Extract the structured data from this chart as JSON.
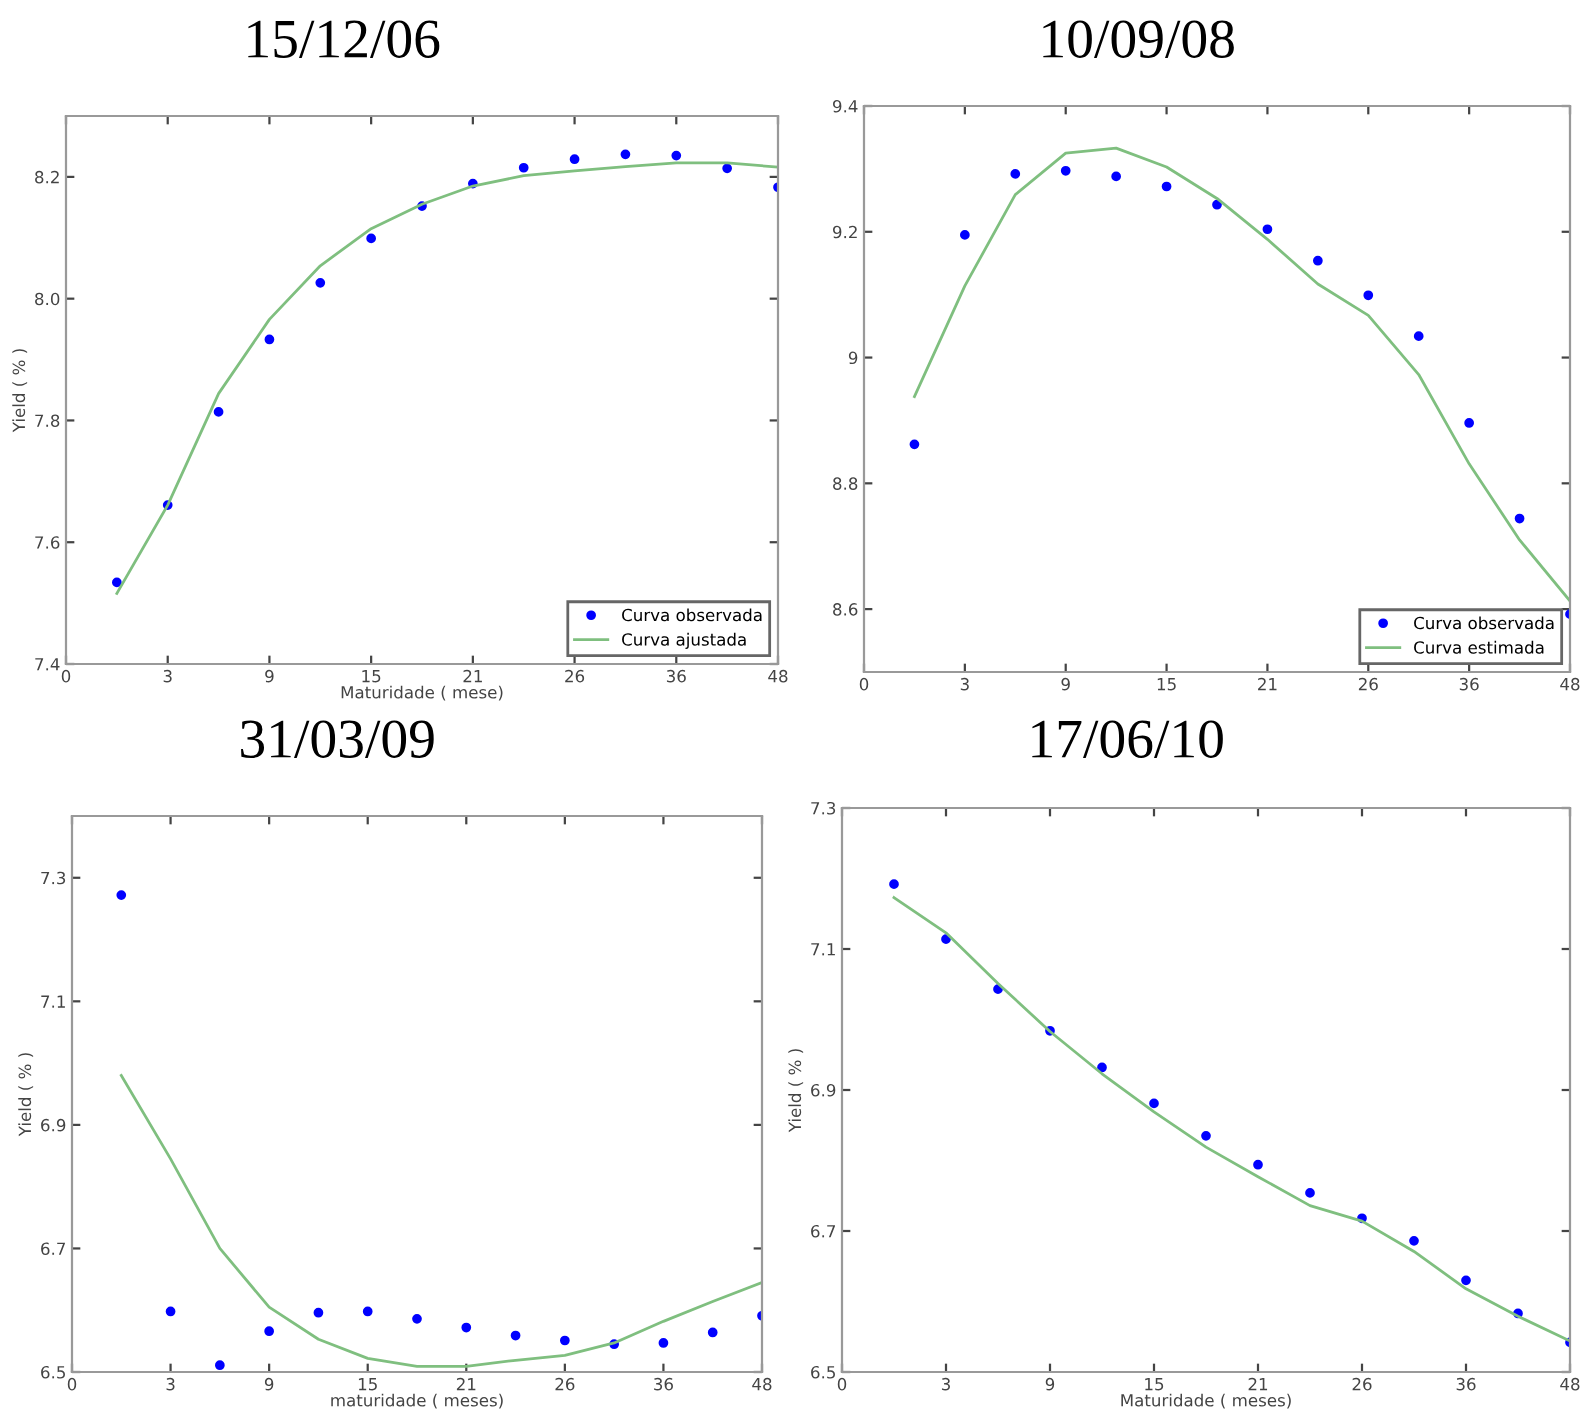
{
  "chart_data": [
    {
      "type": "line",
      "title": "15/12/06",
      "xlabel": "Maturidade ( mese)",
      "ylabel": "Yield ( % )",
      "categories": [
        "0",
        null,
        "3",
        null,
        "9",
        null,
        "15",
        null,
        "21",
        null,
        "26",
        null,
        "36",
        null,
        "48"
      ],
      "ylim": [
        7.4,
        8.3
      ],
      "yticks": [
        {
          "value": 7.4,
          "label": "7.4"
        },
        {
          "value": 7.6,
          "label": "7.6"
        },
        {
          "value": 7.8,
          "label": "7.8"
        },
        {
          "value": 8.0,
          "label": "8.0"
        },
        {
          "value": 8.2,
          "label": "8.2"
        }
      ],
      "legend": "bottom right",
      "grid": false,
      "series": [
        {
          "name": "Curva observada",
          "type": "scatter",
          "marker": "circle",
          "color": "#0000ff",
          "values": [
            null,
            7.534,
            7.661,
            7.814,
            7.933,
            8.026,
            8.099,
            8.152,
            8.189,
            8.215,
            8.229,
            8.237,
            8.235,
            8.214,
            8.183
          ]
        },
        {
          "name": "Curva ajustada",
          "line_style": "solid",
          "color": "#7fbf7f",
          "values": [
            null,
            7.516,
            7.661,
            7.844,
            7.966,
            8.054,
            8.115,
            8.155,
            8.185,
            8.202,
            8.21,
            8.217,
            8.223,
            8.223,
            8.216
          ]
        }
      ]
    },
    {
      "type": "line",
      "title": "10/09/08",
      "categories": [
        "0",
        null,
        "3",
        null,
        "9",
        null,
        "15",
        null,
        "21",
        null,
        "26",
        null,
        "36",
        null,
        "48"
      ],
      "ylim": [
        8.5,
        9.4
      ],
      "yticks": [
        {
          "value": 8.6,
          "label": "8.6"
        },
        {
          "value": 8.8,
          "label": "8.8"
        },
        {
          "value": 9.0,
          "label": "9"
        },
        {
          "value": 9.2,
          "label": "9.2"
        },
        {
          "value": 9.4,
          "label": "9.4"
        }
      ],
      "legend": "bottom right",
      "grid": false,
      "series": [
        {
          "name": "Curva observada",
          "type": "scatter",
          "marker": "circle",
          "color": "#0000ff",
          "values": [
            null,
            8.862,
            9.195,
            9.292,
            9.297,
            9.288,
            9.272,
            9.243,
            9.204,
            9.154,
            9.099,
            9.034,
            8.896,
            8.744,
            8.592
          ]
        },
        {
          "name": "Curva estimada",
          "line_style": "solid",
          "color": "#7fbf7f",
          "values": [
            null,
            8.938,
            9.114,
            9.259,
            9.325,
            9.333,
            9.303,
            9.253,
            9.188,
            9.117,
            9.067,
            8.973,
            8.831,
            8.71,
            8.613
          ]
        }
      ]
    },
    {
      "type": "line",
      "title": "31/03/09",
      "xlabel": "maturidade ( meses)",
      "ylabel": "Yield ( % )",
      "categories": [
        "0",
        null,
        "3",
        null,
        "9",
        null,
        "15",
        null,
        "21",
        null,
        "26",
        null,
        "36",
        null,
        "48"
      ],
      "ylim": [
        6.5,
        7.4
      ],
      "yticks": [
        {
          "value": 6.5,
          "label": "6.5"
        },
        {
          "value": 6.7,
          "label": "6.7"
        },
        {
          "value": 6.9,
          "label": "6.9"
        },
        {
          "value": 7.1,
          "label": "7.1"
        },
        {
          "value": 7.3,
          "label": "7.3"
        }
      ],
      "grid": false,
      "series": [
        {
          "type": "scatter",
          "marker": "circle",
          "color": "#0000ff",
          "values": [
            null,
            7.272,
            6.598,
            6.511,
            6.566,
            6.596,
            6.598,
            6.586,
            6.572,
            6.559,
            6.551,
            6.545,
            6.547,
            6.564,
            6.591
          ]
        },
        {
          "line_style": "solid",
          "color": "#7fbf7f",
          "values": [
            null,
            6.98,
            6.845,
            6.7,
            6.605,
            6.553,
            6.522,
            6.509,
            6.509,
            6.519,
            6.527,
            6.547,
            6.582,
            6.614,
            6.645
          ]
        }
      ]
    },
    {
      "type": "line",
      "title": "17/06/10",
      "xlabel": "Maturidade ( meses)",
      "ylabel": "Yield ( % )",
      "categories": [
        "0",
        null,
        "3",
        null,
        "9",
        null,
        "15",
        null,
        "21",
        null,
        "26",
        null,
        "36",
        null,
        "48"
      ],
      "ylim": [
        6.5,
        7.3
      ],
      "yticks": [
        {
          "value": 6.5,
          "label": "6.5"
        },
        {
          "value": 6.7,
          "label": "6.7"
        },
        {
          "value": 6.9,
          "label": "6.9"
        },
        {
          "value": 7.1,
          "label": "7.1"
        },
        {
          "value": 7.3,
          "label": "7.3"
        }
      ],
      "grid": false,
      "series": [
        {
          "type": "scatter",
          "marker": "circle",
          "color": "#0000ff",
          "values": [
            null,
            7.192,
            7.114,
            7.043,
            6.984,
            6.932,
            6.881,
            6.835,
            6.794,
            6.754,
            6.718,
            6.686,
            6.63,
            6.583,
            6.542
          ]
        },
        {
          "line_style": "solid",
          "color": "#7fbf7f",
          "values": [
            null,
            7.173,
            7.123,
            7.051,
            6.983,
            6.923,
            6.869,
            6.819,
            6.777,
            6.736,
            6.714,
            6.671,
            6.618,
            6.579,
            6.544
          ]
        }
      ]
    }
  ]
}
